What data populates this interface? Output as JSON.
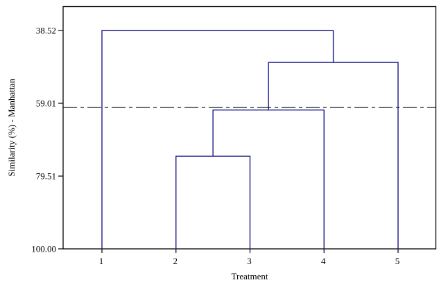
{
  "chart_data": {
    "type": "dendrogram",
    "title": "",
    "xlabel": "Treatment",
    "ylabel": "Similarity (%) - Manhattan",
    "ylim": [
      38.52,
      100.0
    ],
    "y_inverted": true,
    "yticks": [
      "38.52",
      "59.01",
      "79.51",
      "100.00"
    ],
    "yticks_values": [
      38.52,
      59.01,
      79.51,
      100.0
    ],
    "leaves": [
      "1",
      "2",
      "3",
      "4",
      "5"
    ],
    "merges": [
      {
        "clusters": [
          "2",
          "3"
        ],
        "similarity": 73.9
      },
      {
        "clusters": [
          "2,3",
          "4"
        ],
        "similarity": 60.9
      },
      {
        "clusters": [
          "2,3,4",
          "5"
        ],
        "similarity": 47.5
      },
      {
        "clusters": [
          "1",
          "2,3,4,5"
        ],
        "similarity": 38.52
      }
    ],
    "cut_line": {
      "similarity": 60.2,
      "style": "dash-dot"
    },
    "grid": false,
    "legend": null,
    "line_color": "#1a1a8c",
    "frame_color": "#000000"
  }
}
